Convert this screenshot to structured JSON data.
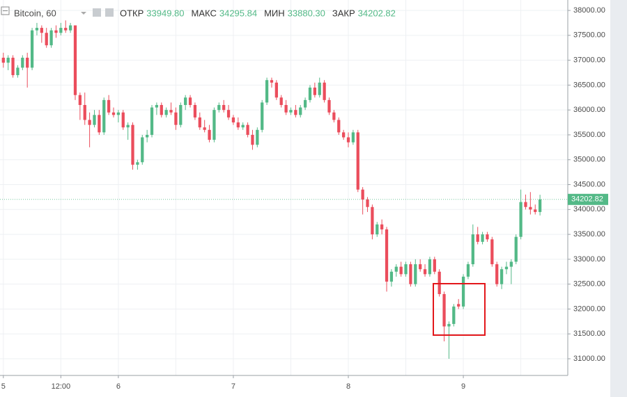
{
  "chart_data": {
    "type": "candlestick",
    "title": "Bitcoin, 60",
    "ohlc_names": [
      "ОТКР",
      "МАКС",
      "МИН",
      "ЗАКР"
    ],
    "value_labels": [
      "33949.80",
      "34295.84",
      "33880.30",
      "34202.82"
    ],
    "up_color": "#53b987",
    "down_color": "#eb4d5c",
    "grid": true,
    "ylim": [
      30665,
      38210
    ],
    "yticks": [
      {
        "value": 31000,
        "label": "31000.00"
      },
      {
        "value": 31500,
        "label": "31500.00"
      },
      {
        "value": 32000,
        "label": "32000.00"
      },
      {
        "value": 32500,
        "label": "32500.00"
      },
      {
        "value": 33000,
        "label": "33000.00"
      },
      {
        "value": 33500,
        "label": "33500.00"
      },
      {
        "value": 34000,
        "label": "34000.00"
      },
      {
        "value": 34500,
        "label": "34500.00"
      },
      {
        "value": 35000,
        "label": "35000.00"
      },
      {
        "value": 35500,
        "label": "35500.00"
      },
      {
        "value": 36000,
        "label": "36000.00"
      },
      {
        "value": 36500,
        "label": "36500.00"
      },
      {
        "value": 37000,
        "label": "37000.00"
      },
      {
        "value": 37500,
        "label": "37500.00"
      },
      {
        "value": 38000,
        "label": "38000.00"
      }
    ],
    "xlim": [
      -0.7,
      117.8
    ],
    "xticks": [
      {
        "value": 0,
        "label": "5"
      },
      {
        "value": 12,
        "label": "12:00"
      },
      {
        "value": 24,
        "label": "6"
      },
      {
        "value": 48,
        "label": "7"
      },
      {
        "value": 72,
        "label": "8"
      },
      {
        "value": 96,
        "label": "9"
      }
    ],
    "xgrid": [
      36,
      60,
      84,
      108
    ],
    "x": [
      0,
      1,
      2,
      3,
      4,
      5,
      6,
      7,
      8,
      9,
      10,
      11,
      12,
      13,
      14,
      15,
      16,
      17,
      18,
      19,
      20,
      21,
      22,
      23,
      24,
      25,
      26,
      27,
      28,
      29,
      30,
      31,
      32,
      33,
      34,
      35,
      36,
      37,
      38,
      39,
      40,
      41,
      42,
      43,
      44,
      45,
      46,
      47,
      48,
      49,
      50,
      51,
      52,
      53,
      54,
      55,
      56,
      57,
      58,
      59,
      60,
      61,
      62,
      63,
      64,
      65,
      66,
      67,
      68,
      69,
      70,
      71,
      72,
      73,
      74,
      75,
      76,
      77,
      78,
      79,
      80,
      81,
      82,
      83,
      84,
      85,
      86,
      87,
      88,
      89,
      90,
      91,
      92,
      93,
      94,
      95,
      96,
      97,
      98,
      99,
      100,
      101,
      102,
      103,
      104,
      105,
      106,
      107,
      108,
      109,
      110,
      111,
      112
    ],
    "candles": [
      [
        37050,
        37150,
        36850,
        36950
      ],
      [
        36950,
        37100,
        36800,
        37050
      ],
      [
        37050,
        37100,
        36650,
        36700
      ],
      [
        36700,
        36900,
        36650,
        36850
      ],
      [
        36850,
        37100,
        36800,
        37050
      ],
      [
        37050,
        37150,
        36450,
        36850
      ],
      [
        36850,
        37650,
        36800,
        37600
      ],
      [
        37600,
        37750,
        37500,
        37650
      ],
      [
        37650,
        37700,
        37350,
        37550
      ],
      [
        37550,
        37650,
        37250,
        37300
      ],
      [
        37300,
        37650,
        37250,
        37600
      ],
      [
        37600,
        37700,
        37450,
        37550
      ],
      [
        37550,
        37750,
        37500,
        37650
      ],
      [
        37650,
        37800,
        37550,
        37600
      ],
      [
        37600,
        37750,
        37550,
        37700
      ],
      [
        37700,
        37700,
        36200,
        36300
      ],
      [
        36300,
        36350,
        35800,
        36100
      ],
      [
        36100,
        36350,
        35700,
        35800
      ],
      [
        35800,
        35950,
        35250,
        35700
      ],
      [
        35700,
        36000,
        35650,
        35900
      ],
      [
        35900,
        36000,
        35500,
        35550
      ],
      [
        35550,
        36250,
        35500,
        36200
      ],
      [
        36200,
        36300,
        35900,
        35950
      ],
      [
        35950,
        36050,
        35850,
        35900
      ],
      [
        35900,
        36000,
        35750,
        35950
      ],
      [
        35950,
        36000,
        35600,
        35650
      ],
      [
        35650,
        35750,
        35400,
        35700
      ],
      [
        35700,
        35750,
        34800,
        34900
      ],
      [
        34900,
        35000,
        34800,
        34950
      ],
      [
        34950,
        35500,
        34900,
        35450
      ],
      [
        35450,
        35600,
        35350,
        35500
      ],
      [
        35500,
        36100,
        35450,
        36050
      ],
      [
        36050,
        36150,
        35900,
        36100
      ],
      [
        36100,
        36150,
        35850,
        35900
      ],
      [
        35900,
        36050,
        35850,
        36000
      ],
      [
        36000,
        36150,
        35900,
        35950
      ],
      [
        35950,
        36050,
        35600,
        35700
      ],
      [
        35700,
        36150,
        35650,
        36100
      ],
      [
        36100,
        36300,
        36000,
        36250
      ],
      [
        36250,
        36300,
        36050,
        36100
      ],
      [
        36100,
        36150,
        35800,
        35850
      ],
      [
        35850,
        35950,
        35600,
        35650
      ],
      [
        35650,
        35800,
        35550,
        35600
      ],
      [
        35600,
        35700,
        35350,
        35400
      ],
      [
        35400,
        36050,
        35350,
        36000
      ],
      [
        36000,
        36150,
        35950,
        36100
      ],
      [
        36100,
        36200,
        35950,
        36000
      ],
      [
        36000,
        36100,
        35800,
        35850
      ],
      [
        35850,
        35900,
        35700,
        35750
      ],
      [
        35750,
        35850,
        35600,
        35650
      ],
      [
        35650,
        35750,
        35600,
        35700
      ],
      [
        35700,
        35750,
        35450,
        35500
      ],
      [
        35500,
        35600,
        35200,
        35300
      ],
      [
        35300,
        35650,
        35250,
        35600
      ],
      [
        35600,
        36200,
        35550,
        36150
      ],
      [
        36150,
        36650,
        36100,
        36600
      ],
      [
        36600,
        36650,
        36450,
        36550
      ],
      [
        36550,
        36600,
        36200,
        36250
      ],
      [
        36250,
        36300,
        36050,
        36100
      ],
      [
        36100,
        36200,
        35900,
        35950
      ],
      [
        35950,
        36050,
        35900,
        36000
      ],
      [
        36000,
        36100,
        35850,
        35900
      ],
      [
        35900,
        36100,
        35850,
        36050
      ],
      [
        36050,
        36250,
        36000,
        36200
      ],
      [
        36200,
        36500,
        36150,
        36450
      ],
      [
        36450,
        36550,
        36250,
        36300
      ],
      [
        36300,
        36650,
        36250,
        36550
      ],
      [
        36550,
        36600,
        36150,
        36200
      ],
      [
        36200,
        36250,
        35900,
        35950
      ],
      [
        35950,
        36000,
        35750,
        35800
      ],
      [
        35800,
        35850,
        35500,
        35550
      ],
      [
        35550,
        35600,
        35400,
        35450
      ],
      [
        35450,
        35550,
        35250,
        35350
      ],
      [
        35350,
        35600,
        35300,
        35550
      ],
      [
        35550,
        35600,
        34350,
        34400
      ],
      [
        34400,
        34450,
        33900,
        34200
      ],
      [
        34200,
        34250,
        33950,
        34050
      ],
      [
        34050,
        34100,
        33400,
        33500
      ],
      [
        33500,
        33750,
        33450,
        33700
      ],
      [
        33700,
        33800,
        33500,
        33600
      ],
      [
        33600,
        33650,
        32350,
        32550
      ],
      [
        32550,
        32800,
        32450,
        32750
      ],
      [
        32750,
        32900,
        32650,
        32850
      ],
      [
        32850,
        32950,
        32650,
        32700
      ],
      [
        32700,
        32950,
        32650,
        32900
      ],
      [
        32900,
        32950,
        32450,
        32500
      ],
      [
        32500,
        33000,
        32450,
        32900
      ],
      [
        32900,
        33000,
        32750,
        32800
      ],
      [
        32800,
        32900,
        32650,
        32700
      ],
      [
        32700,
        33050,
        32650,
        33000
      ],
      [
        33000,
        33050,
        32700,
        32750
      ],
      [
        32750,
        32800,
        32250,
        32300
      ],
      [
        32300,
        32350,
        31350,
        31650
      ],
      [
        31650,
        31750,
        31000,
        31700
      ],
      [
        31700,
        32100,
        31650,
        32050
      ],
      [
        32100,
        32200,
        32000,
        32050
      ],
      [
        32050,
        32700,
        32000,
        32650
      ],
      [
        32650,
        32950,
        32600,
        32900
      ],
      [
        32900,
        33700,
        32850,
        33500
      ],
      [
        33500,
        33650,
        33300,
        33350
      ],
      [
        33350,
        33550,
        33300,
        33500
      ],
      [
        33500,
        33550,
        33350,
        33400
      ],
      [
        33400,
        33450,
        32850,
        32900
      ],
      [
        32900,
        32950,
        32450,
        32500
      ],
      [
        32500,
        32850,
        32400,
        32800
      ],
      [
        32800,
        32950,
        32700,
        32850
      ],
      [
        32850,
        33000,
        32500,
        32950
      ],
      [
        32950,
        33500,
        32900,
        33450
      ],
      [
        33450,
        34400,
        33400,
        34150
      ],
      [
        34150,
        34300,
        34000,
        34050
      ],
      [
        34050,
        34350,
        33900,
        34000
      ],
      [
        34000,
        34100,
        33900,
        33950
      ],
      [
        33949.8,
        34295.84,
        33880.3,
        34202.82
      ]
    ]
  }
}
